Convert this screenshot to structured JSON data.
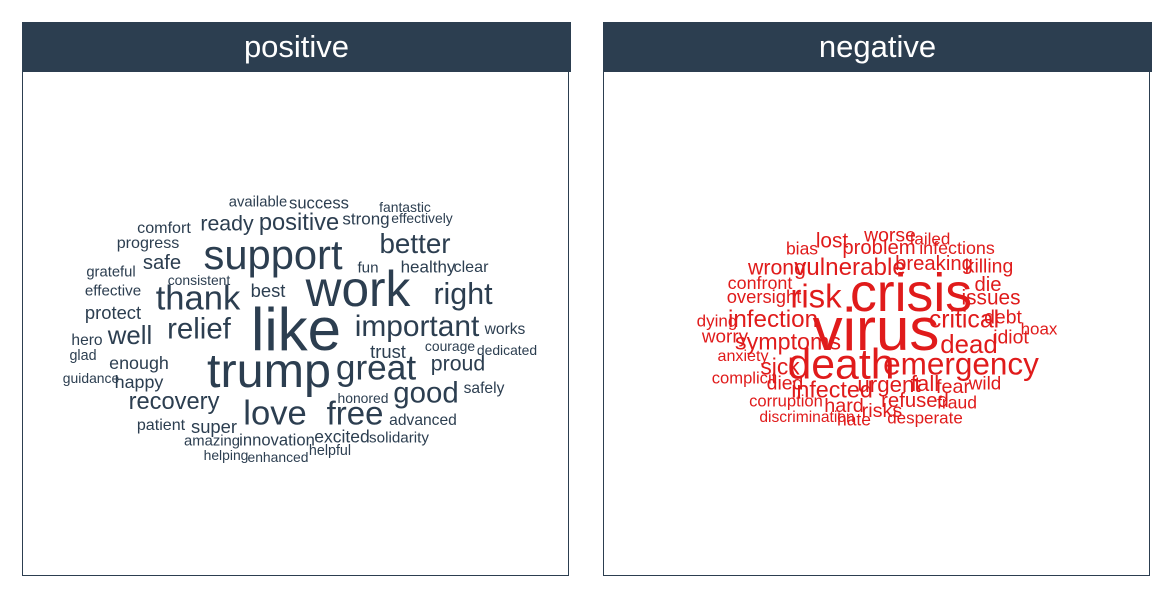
{
  "colors": {
    "header_bg": "#2c3e50",
    "header_text": "#ffffff",
    "positive_words": "#2c3e50",
    "negative_words": "#e01b1b"
  },
  "chart_data": [
    {
      "type": "wordcloud",
      "title": "positive",
      "words": [
        {
          "text": "like",
          "weight": 100
        },
        {
          "text": "work",
          "weight": 82
        },
        {
          "text": "trump",
          "weight": 80
        },
        {
          "text": "support",
          "weight": 68
        },
        {
          "text": "great",
          "weight": 56
        },
        {
          "text": "thank",
          "weight": 55
        },
        {
          "text": "love",
          "weight": 55
        },
        {
          "text": "free",
          "weight": 52
        },
        {
          "text": "right",
          "weight": 47
        },
        {
          "text": "important",
          "weight": 46
        },
        {
          "text": "relief",
          "weight": 45
        },
        {
          "text": "good",
          "weight": 45
        },
        {
          "text": "better",
          "weight": 42
        },
        {
          "text": "well",
          "weight": 38
        },
        {
          "text": "recovery",
          "weight": 34
        },
        {
          "text": "positive",
          "weight": 34
        },
        {
          "text": "proud",
          "weight": 29
        },
        {
          "text": "ready",
          "weight": 29
        },
        {
          "text": "safe",
          "weight": 27
        },
        {
          "text": "best",
          "weight": 23
        },
        {
          "text": "trust",
          "weight": 23
        },
        {
          "text": "protect",
          "weight": 23
        },
        {
          "text": "super",
          "weight": 23
        },
        {
          "text": "enough",
          "weight": 22
        },
        {
          "text": "happy",
          "weight": 22
        },
        {
          "text": "excited",
          "weight": 21
        },
        {
          "text": "strong",
          "weight": 20
        },
        {
          "text": "healthy",
          "weight": 20
        },
        {
          "text": "success",
          "weight": 19
        },
        {
          "text": "innovation",
          "weight": 19
        },
        {
          "text": "clear",
          "weight": 18
        },
        {
          "text": "comfort",
          "weight": 18
        },
        {
          "text": "progress",
          "weight": 18
        },
        {
          "text": "patient",
          "weight": 18
        },
        {
          "text": "hero",
          "weight": 17
        },
        {
          "text": "works",
          "weight": 17
        },
        {
          "text": "safely",
          "weight": 17
        },
        {
          "text": "advanced",
          "weight": 17
        },
        {
          "text": "fun",
          "weight": 16
        },
        {
          "text": "effective",
          "weight": 16
        },
        {
          "text": "solidarity",
          "weight": 16
        },
        {
          "text": "grateful",
          "weight": 15
        },
        {
          "text": "amazing",
          "weight": 15
        },
        {
          "text": "available",
          "weight": 15
        },
        {
          "text": "helpful",
          "weight": 14
        },
        {
          "text": "glad",
          "weight": 14
        },
        {
          "text": "effectively",
          "weight": 13
        },
        {
          "text": "fantastic",
          "weight": 13
        },
        {
          "text": "courage",
          "weight": 13
        },
        {
          "text": "dedicated",
          "weight": 13
        },
        {
          "text": "guidance",
          "weight": 13
        },
        {
          "text": "consistent",
          "weight": 13
        },
        {
          "text": "honored",
          "weight": 13
        },
        {
          "text": "helping",
          "weight": 13
        },
        {
          "text": "enhanced",
          "weight": 13
        }
      ]
    },
    {
      "type": "wordcloud",
      "title": "negative",
      "words": [
        {
          "text": "virus",
          "weight": 100
        },
        {
          "text": "crisis",
          "weight": 89
        },
        {
          "text": "death",
          "weight": 70
        },
        {
          "text": "risk",
          "weight": 52
        },
        {
          "text": "emergency",
          "weight": 49
        },
        {
          "text": "dead",
          "weight": 38
        },
        {
          "text": "critical",
          "weight": 36
        },
        {
          "text": "vulnerable",
          "weight": 35
        },
        {
          "text": "infection",
          "weight": 35
        },
        {
          "text": "symptoms",
          "weight": 33
        },
        {
          "text": "infected",
          "weight": 33
        },
        {
          "text": "sick",
          "weight": 32
        },
        {
          "text": "urgent",
          "weight": 31
        },
        {
          "text": "fall",
          "weight": 31
        },
        {
          "text": "wrong",
          "weight": 29
        },
        {
          "text": "issues",
          "weight": 28
        },
        {
          "text": "lost",
          "weight": 28
        },
        {
          "text": "die",
          "weight": 27
        },
        {
          "text": "problem",
          "weight": 27
        },
        {
          "text": "breaking",
          "weight": 27
        },
        {
          "text": "refused",
          "weight": 27
        },
        {
          "text": "fear",
          "weight": 26
        },
        {
          "text": "hard",
          "weight": 26
        },
        {
          "text": "risks",
          "weight": 26
        },
        {
          "text": "worse",
          "weight": 25
        },
        {
          "text": "killing",
          "weight": 25
        },
        {
          "text": "died",
          "weight": 25
        },
        {
          "text": "idiot",
          "weight": 25
        },
        {
          "text": "debt",
          "weight": 25
        },
        {
          "text": "wild",
          "weight": 24
        },
        {
          "text": "worry",
          "weight": 24
        },
        {
          "text": "oversight",
          "weight": 23
        },
        {
          "text": "infections",
          "weight": 22
        },
        {
          "text": "confront",
          "weight": 22
        },
        {
          "text": "bias",
          "weight": 21
        },
        {
          "text": "fraud",
          "weight": 21
        },
        {
          "text": "hate",
          "weight": 21
        },
        {
          "text": "desperate",
          "weight": 20
        },
        {
          "text": "failed",
          "weight": 20
        },
        {
          "text": "dying",
          "weight": 20
        },
        {
          "text": "hoax",
          "weight": 20
        },
        {
          "text": "corruption",
          "weight": 19
        },
        {
          "text": "complicit",
          "weight": 19
        },
        {
          "text": "anxiety",
          "weight": 18
        },
        {
          "text": "discrimination",
          "weight": 17
        }
      ]
    }
  ]
}
